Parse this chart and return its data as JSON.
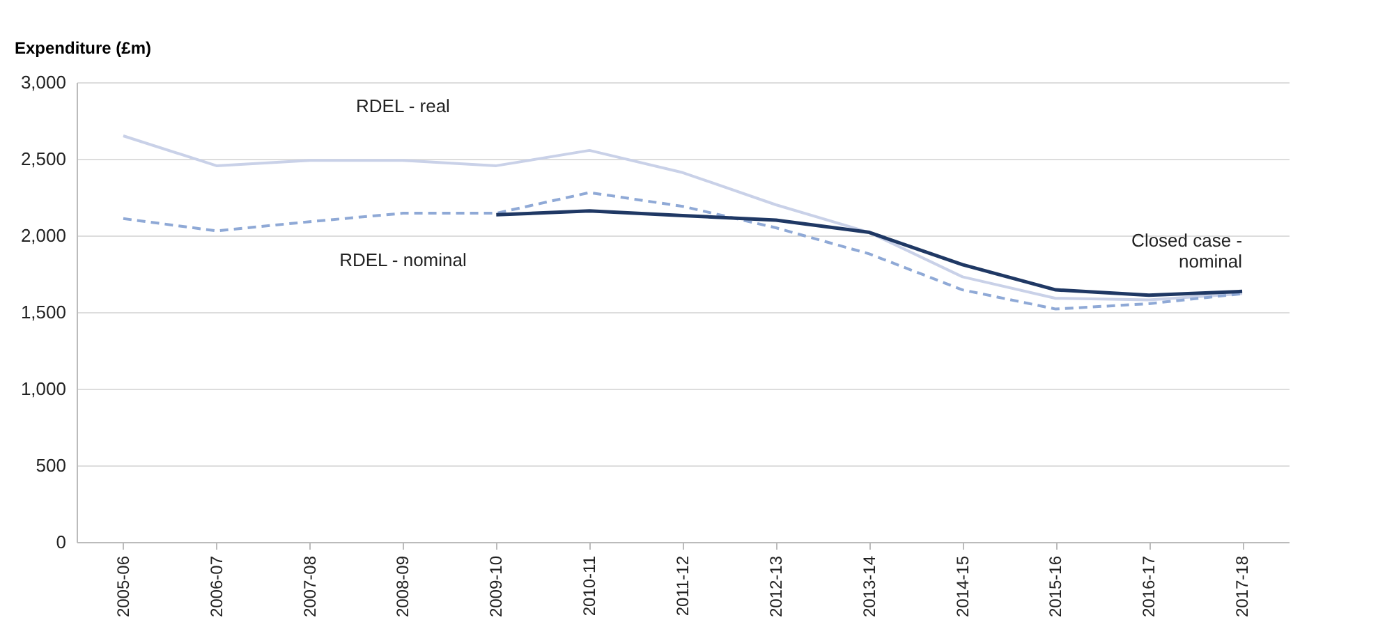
{
  "chart_data": {
    "type": "line",
    "ylabel": "Expenditure (£m)",
    "categories": [
      "2005-06",
      "2006-07",
      "2007-08",
      "2008-09",
      "2009-10",
      "2010-11",
      "2011-12",
      "2012-13",
      "2013-14",
      "2014-15",
      "2015-16",
      "2016-17",
      "2017-18"
    ],
    "series": [
      {
        "name": "RDEL - real",
        "color": "#c9d1e8",
        "line_style": "solid",
        "values": [
          2650,
          2455,
          2490,
          2490,
          2455,
          2555,
          2410,
          2200,
          2020,
          1730,
          1590,
          1580,
          1620
        ]
      },
      {
        "name": "RDEL - nominal",
        "color": "#8fa9d6",
        "line_style": "dashed",
        "values": [
          2110,
          2030,
          2090,
          2145,
          2145,
          2280,
          2190,
          2050,
          1880,
          1645,
          1520,
          1555,
          1620
        ]
      },
      {
        "name": "Closed case -\nnominal",
        "color": "#1f3864",
        "line_style": "solid",
        "values": [
          null,
          null,
          null,
          null,
          2135,
          2160,
          2130,
          2100,
          2020,
          1810,
          1645,
          1610,
          1635
        ]
      }
    ],
    "ylim": [
      0,
      3000
    ],
    "yticks": [
      0,
      500,
      {
        "value": 1000,
        "label": "1,000"
      },
      {
        "value": 1500,
        "label": "1,500"
      },
      {
        "value": 2000,
        "label": "2,000"
      },
      {
        "value": 2500,
        "label": "2,500"
      },
      {
        "value": 3000,
        "label": "3,000"
      }
    ],
    "grid": "y",
    "marker": "none"
  }
}
